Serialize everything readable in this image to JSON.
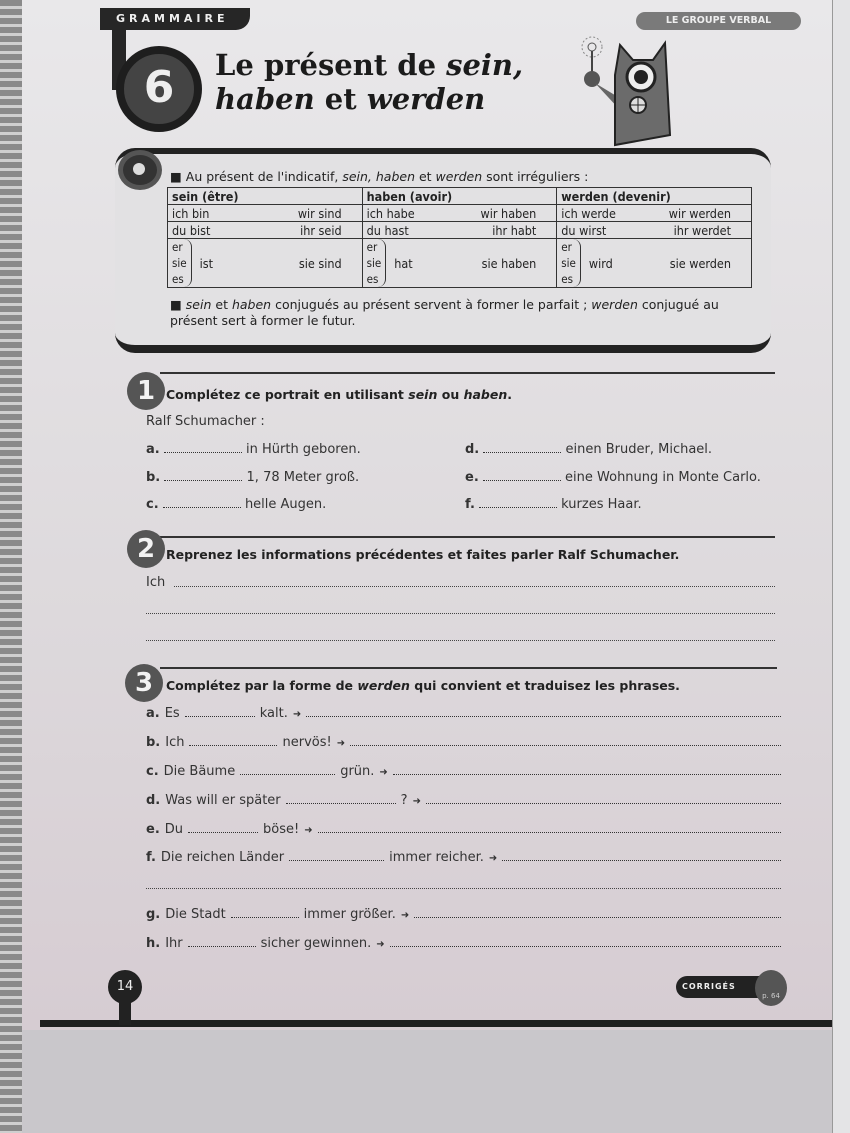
{
  "header": {
    "section": "GRAMMAIRE",
    "chapter_number": "6",
    "title_line1": "Le présent de ",
    "title_em1": "sein,",
    "title_line2_em": "haben",
    "title_line2": " et ",
    "title_line2_em2": "werden",
    "category": "LE GROUPE VERBAL"
  },
  "info": {
    "intro_prefix": "Au présent de l'indicatif, ",
    "intro_sein": "sein, ",
    "intro_haben": "haben",
    "intro_mid": " et ",
    "intro_werden": "werden",
    "intro_suffix": " sont irréguliers :",
    "table": [
      {
        "verb": "sein (être)",
        "s1": "ich bin",
        "p1": "wir sind",
        "s2": "du bist",
        "p2": "ihr seid",
        "s3": "ist",
        "p3": "sie sind"
      },
      {
        "verb": "haben (avoir)",
        "s1": "ich habe",
        "p1": "wir haben",
        "s2": "du hast",
        "p2": "ihr habt",
        "s3": "hat",
        "p3": "sie haben"
      },
      {
        "verb": "werden (devenir)",
        "s1": "ich werde",
        "p1": "wir werden",
        "s2": "du wirst",
        "p2": "ihr werdet",
        "s3": "wird",
        "p3": "sie werden"
      }
    ],
    "pronouns": [
      "er",
      "sie",
      "es"
    ],
    "note_sein": "sein",
    "note_et": " et ",
    "note_haben": "haben",
    "note_mid": " conjugués au présent servent à former le parfait ; ",
    "note_werden": "werden",
    "note_end": " conjugué au présent sert à former le futur."
  },
  "ex1": {
    "number": "1",
    "instr_a": "Complétez ce portrait en utilisant ",
    "instr_sein": "sein",
    "instr_ou": " ou ",
    "instr_haben": "haben",
    "instr_end": ".",
    "subject": "Ralf Schumacher :",
    "items": [
      {
        "l": "a.",
        "t": "in Hürth geboren."
      },
      {
        "l": "b.",
        "t": "1, 78 Meter groß."
      },
      {
        "l": "c.",
        "t": "helle Augen."
      },
      {
        "l": "d.",
        "t": "einen Bruder, Michael."
      },
      {
        "l": "e.",
        "t": "eine Wohnung in Monte Carlo."
      },
      {
        "l": "f.",
        "t": "kurzes Haar."
      }
    ]
  },
  "ex2": {
    "number": "2",
    "instr": "Reprenez les informations précédentes et faites parler Ralf Schumacher.",
    "start": "Ich"
  },
  "ex3": {
    "number": "3",
    "instr_a": "Complétez par la forme de ",
    "instr_werden": "werden",
    "instr_end": " qui convient et traduisez les phrases.",
    "items": [
      {
        "l": "a.",
        "pre": "Es",
        "post": "kalt."
      },
      {
        "l": "b.",
        "pre": "Ich",
        "post": "nervös!"
      },
      {
        "l": "c.",
        "pre": "Die Bäume",
        "post": "grün."
      },
      {
        "l": "d.",
        "pre": "Was will er später",
        "post": "?"
      },
      {
        "l": "e.",
        "pre": "Du",
        "post": "böse!"
      },
      {
        "l": "f.",
        "pre": "Die reichen Länder",
        "post": "immer reicher."
      },
      {
        "l": "g.",
        "pre": "Die Stadt",
        "post": "immer größer."
      },
      {
        "l": "h.",
        "pre": "Ihr",
        "post": "sicher gewinnen."
      }
    ],
    "arrow": "➜"
  },
  "footer": {
    "page": "14",
    "corriges": "CORRIGÉS",
    "corriges_page": "p. 64"
  }
}
